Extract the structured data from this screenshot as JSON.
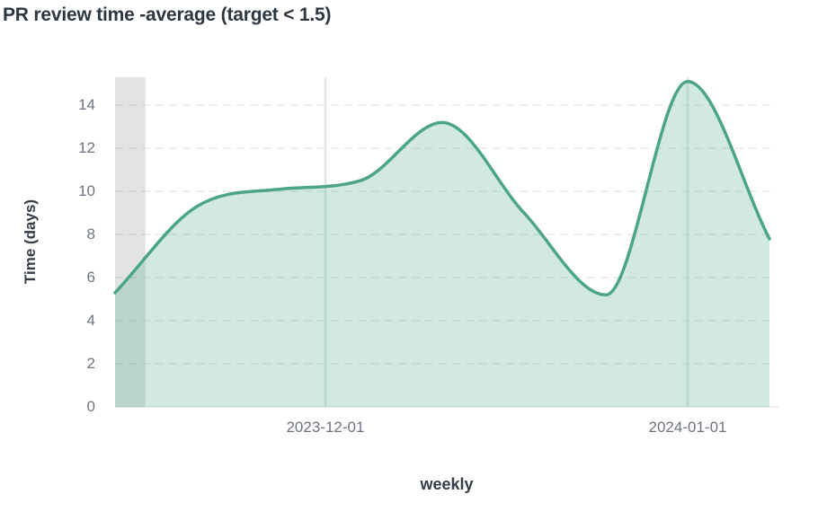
{
  "chart_data": {
    "type": "area",
    "title": "PR review time -average (target < 1.5)",
    "xlabel": "weekly",
    "ylabel": "Time (days)",
    "ylim": [
      0,
      15.3
    ],
    "yticks": [
      0,
      2,
      4,
      6,
      8,
      10,
      12,
      14
    ],
    "grid": "horizontal-dashed",
    "legend": "none",
    "x": [
      "2023-11-13",
      "2023-11-20",
      "2023-11-27",
      "2023-12-04",
      "2023-12-11",
      "2023-12-18",
      "2023-12-25",
      "2024-01-01",
      "2024-01-08"
    ],
    "series": [
      {
        "name": "average",
        "values": [
          5.3,
          9.3,
          10.1,
          10.5,
          13.2,
          9.0,
          5.2,
          15.1,
          7.8
        ]
      }
    ],
    "x_ticks": [
      {
        "label": "2023-12-01",
        "index": 2.571
      },
      {
        "label": "2024-01-01",
        "index": 7
      }
    ],
    "highlight_band": {
      "start_index": 0,
      "end_index": 0.37
    },
    "colors": {
      "line": "#4ba586",
      "fill": "rgba(76,169,138,0.25)",
      "band": "rgba(119,126,133,0.22)",
      "h_grid": "#e9ebee",
      "v_grid": "#dde4e9",
      "axis_line": "#e3e6ea",
      "tick_text": "#6d7480",
      "title_text": "#2e3642"
    }
  }
}
